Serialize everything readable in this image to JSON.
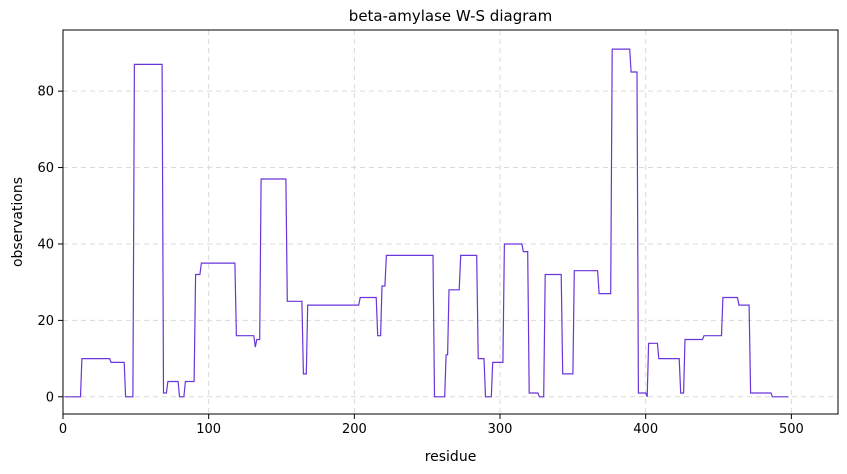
{
  "chart_data": {
    "type": "line",
    "title": "beta-amylase W-S diagram",
    "xlabel": "residue",
    "ylabel": "observations",
    "xlim": [
      0,
      532
    ],
    "ylim": [
      -4.5,
      96
    ],
    "xticks": [
      0,
      100,
      200,
      300,
      400,
      500
    ],
    "yticks": [
      0,
      20,
      40,
      60,
      80
    ],
    "grid": true,
    "line_color": "#6a35d9",
    "series": [
      {
        "name": "",
        "points": [
          [
            1,
            0
          ],
          [
            12,
            0
          ],
          [
            13,
            10
          ],
          [
            32,
            10
          ],
          [
            33,
            9
          ],
          [
            42,
            9
          ],
          [
            43,
            0
          ],
          [
            48,
            0
          ],
          [
            49,
            87
          ],
          [
            68,
            87
          ],
          [
            69,
            1
          ],
          [
            71,
            1
          ],
          [
            72,
            4
          ],
          [
            79,
            4
          ],
          [
            80,
            0
          ],
          [
            83,
            0
          ],
          [
            84,
            4
          ],
          [
            90,
            4
          ],
          [
            91,
            32
          ],
          [
            94,
            32
          ],
          [
            95,
            35
          ],
          [
            118,
            35
          ],
          [
            119,
            16
          ],
          [
            131,
            16
          ],
          [
            132,
            13
          ],
          [
            133,
            15
          ],
          [
            135,
            15
          ],
          [
            136,
            57
          ],
          [
            153,
            57
          ],
          [
            154,
            25
          ],
          [
            164,
            25
          ],
          [
            165,
            6
          ],
          [
            167,
            6
          ],
          [
            168,
            24
          ],
          [
            203,
            24
          ],
          [
            204,
            26
          ],
          [
            215,
            26
          ],
          [
            216,
            16
          ],
          [
            218,
            16
          ],
          [
            219,
            29
          ],
          [
            221,
            29
          ],
          [
            222,
            37
          ],
          [
            254,
            37
          ],
          [
            255,
            0
          ],
          [
            262,
            0
          ],
          [
            263,
            11
          ],
          [
            264,
            11
          ],
          [
            265,
            28
          ],
          [
            272,
            28
          ],
          [
            273,
            37
          ],
          [
            284,
            37
          ],
          [
            285,
            10
          ],
          [
            289,
            10
          ],
          [
            290,
            0
          ],
          [
            294,
            0
          ],
          [
            295,
            9
          ],
          [
            302,
            9
          ],
          [
            303,
            40
          ],
          [
            315,
            40
          ],
          [
            316,
            38
          ],
          [
            319,
            38
          ],
          [
            320,
            1
          ],
          [
            326,
            1
          ],
          [
            327,
            0
          ],
          [
            330,
            0
          ],
          [
            331,
            32
          ],
          [
            342,
            32
          ],
          [
            343,
            6
          ],
          [
            350,
            6
          ],
          [
            351,
            33
          ],
          [
            367,
            33
          ],
          [
            368,
            27
          ],
          [
            376,
            27
          ],
          [
            377,
            91
          ],
          [
            389,
            91
          ],
          [
            390,
            85
          ],
          [
            394,
            85
          ],
          [
            395,
            1
          ],
          [
            400,
            1
          ],
          [
            401,
            0
          ],
          [
            402,
            14
          ],
          [
            408,
            14
          ],
          [
            409,
            10
          ],
          [
            423,
            10
          ],
          [
            424,
            1
          ],
          [
            426,
            1
          ],
          [
            427,
            15
          ],
          [
            439,
            15
          ],
          [
            440,
            16
          ],
          [
            452,
            16
          ],
          [
            453,
            26
          ],
          [
            463,
            26
          ],
          [
            464,
            24
          ],
          [
            471,
            24
          ],
          [
            472,
            1
          ],
          [
            486,
            1
          ],
          [
            487,
            0
          ],
          [
            498,
            0
          ]
        ]
      }
    ]
  }
}
